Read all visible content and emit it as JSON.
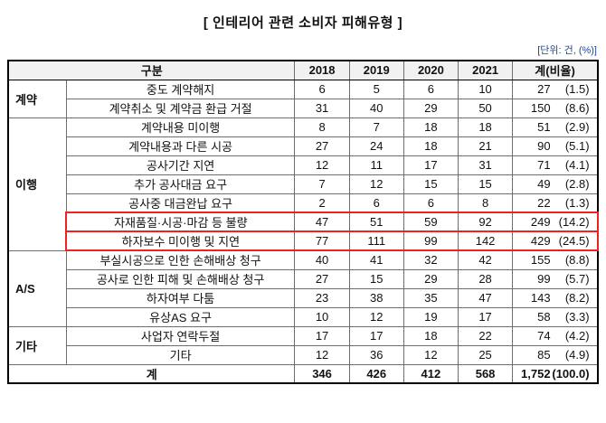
{
  "colors": {
    "highlight_border": "#ee2222",
    "unit_note": "#1d4596",
    "header_bg": "#f1f1f1"
  },
  "chart_data": {
    "type": "table",
    "title": "[ 인테리어 관련 소비자 피해유형 ]",
    "unit": "[단위: 건, (%)]",
    "headers": {
      "category": "구분",
      "years": [
        "2018",
        "2019",
        "2020",
        "2021"
      ],
      "total": "계(비율)"
    },
    "groups": [
      {
        "label": "계약",
        "rows": [
          {
            "label": "중도 계약해지",
            "values": [
              "6",
              "5",
              "6",
              "10"
            ],
            "total": "27",
            "pct": "(1.5)"
          },
          {
            "label": "계약취소 및 계약금 환급 거절",
            "values": [
              "31",
              "40",
              "29",
              "50"
            ],
            "total": "150",
            "pct": "(8.6)"
          }
        ]
      },
      {
        "label": "이행",
        "rows": [
          {
            "label": "계약내용 미이행",
            "values": [
              "8",
              "7",
              "18",
              "18"
            ],
            "total": "51",
            "pct": "(2.9)"
          },
          {
            "label": "계약내용과 다른 시공",
            "values": [
              "27",
              "24",
              "18",
              "21"
            ],
            "total": "90",
            "pct": "(5.1)"
          },
          {
            "label": "공사기간 지연",
            "values": [
              "12",
              "11",
              "17",
              "31"
            ],
            "total": "71",
            "pct": "(4.1)"
          },
          {
            "label": "추가 공사대금 요구",
            "values": [
              "7",
              "12",
              "15",
              "15"
            ],
            "total": "49",
            "pct": "(2.8)"
          },
          {
            "label": "공사중 대금완납 요구",
            "values": [
              "2",
              "6",
              "6",
              "8"
            ],
            "total": "22",
            "pct": "(1.3)"
          },
          {
            "label": "자재품질·시공·마감 등 불량",
            "values": [
              "47",
              "51",
              "59",
              "92"
            ],
            "total": "249",
            "pct": "(14.2)",
            "highlight": true
          },
          {
            "label": "하자보수 미이행 및 지연",
            "values": [
              "77",
              "111",
              "99",
              "142"
            ],
            "total": "429",
            "pct": "(24.5)",
            "highlight": true
          }
        ]
      },
      {
        "label": "A/S",
        "rows": [
          {
            "label": "부실시공으로 인한 손해배상 청구",
            "values": [
              "40",
              "41",
              "32",
              "42"
            ],
            "total": "155",
            "pct": "(8.8)"
          },
          {
            "label": "공사로 인한 피해 및 손해배상 청구",
            "values": [
              "27",
              "15",
              "29",
              "28"
            ],
            "total": "99",
            "pct": "(5.7)"
          },
          {
            "label": "하자여부 다툼",
            "values": [
              "23",
              "38",
              "35",
              "47"
            ],
            "total": "143",
            "pct": "(8.2)"
          },
          {
            "label": "유상AS 요구",
            "values": [
              "10",
              "12",
              "19",
              "17"
            ],
            "total": "58",
            "pct": "(3.3)"
          }
        ]
      },
      {
        "label": "기타",
        "rows": [
          {
            "label": "사업자 연락두절",
            "values": [
              "17",
              "17",
              "18",
              "22"
            ],
            "total": "74",
            "pct": "(4.2)"
          },
          {
            "label": "기타",
            "values": [
              "12",
              "36",
              "12",
              "25"
            ],
            "total": "85",
            "pct": "(4.9)"
          }
        ]
      }
    ],
    "total_row": {
      "label": "계",
      "values": [
        "346",
        "426",
        "412",
        "568"
      ],
      "total": "1,752",
      "pct": "(100.0)"
    }
  }
}
